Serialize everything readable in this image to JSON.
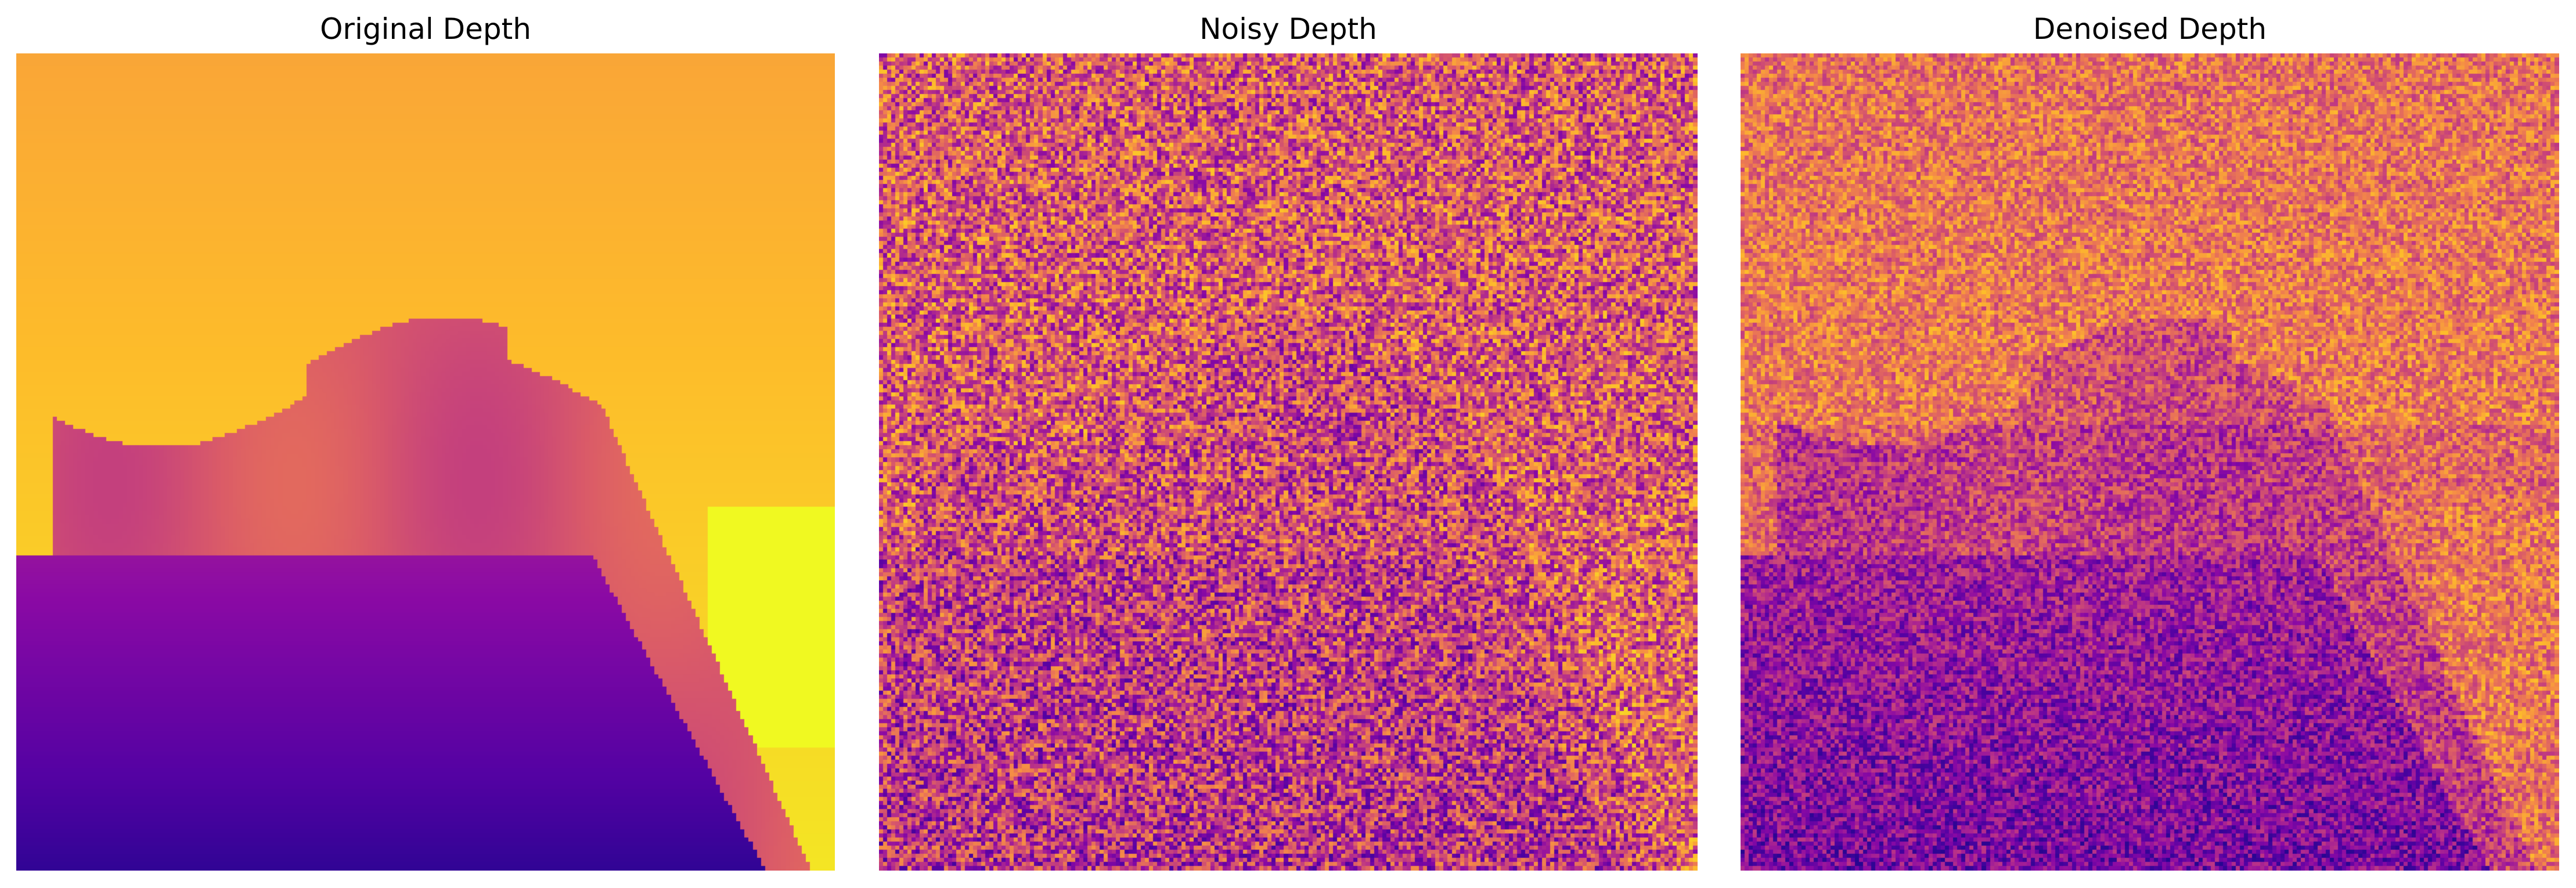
{
  "panels": [
    {
      "title": "Original Depth"
    },
    {
      "title": "Noisy Depth"
    },
    {
      "title": "Denoised Depth"
    }
  ],
  "colors": {
    "background": "#ffffff",
    "colormap": "plasma",
    "deep": "#1a0586",
    "purple": "#6a03a5",
    "magenta": "#b12a90",
    "orange": "#f79342",
    "yellow": "#f0f921"
  }
}
